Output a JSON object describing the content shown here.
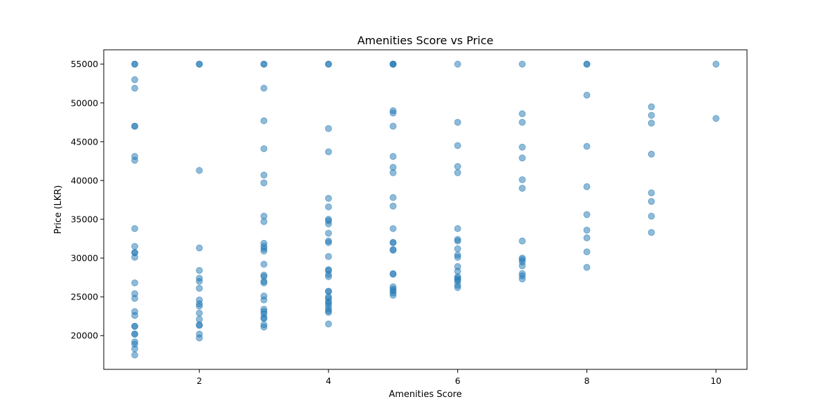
{
  "chart_data": {
    "type": "scatter",
    "title": "Amenities Score vs Price",
    "xlabel": "Amenities Score",
    "ylabel": "Price (LKR)",
    "xlim": [
      0.52,
      10.48
    ],
    "ylim": [
      15650,
      56850
    ],
    "x_ticks": [
      2,
      4,
      6,
      8,
      10
    ],
    "y_ticks": [
      20000,
      25000,
      30000,
      35000,
      40000,
      45000,
      50000,
      55000
    ],
    "grid": false,
    "legend": "none",
    "marker_color": "#1f77b4",
    "marker_alpha": 0.5,
    "series": [
      {
        "points": [
          [
            1,
            55000
          ],
          [
            1,
            55000
          ],
          [
            1,
            53000
          ],
          [
            1,
            51900
          ],
          [
            1,
            47000
          ],
          [
            1,
            47000
          ],
          [
            1,
            43100
          ],
          [
            1,
            42600
          ],
          [
            1,
            33800
          ],
          [
            1,
            31500
          ],
          [
            1,
            30700
          ],
          [
            1,
            30700
          ],
          [
            1,
            30100
          ],
          [
            1,
            26800
          ],
          [
            1,
            25400
          ],
          [
            1,
            24800
          ],
          [
            1,
            23100
          ],
          [
            1,
            22600
          ],
          [
            1,
            21200
          ],
          [
            1,
            21200
          ],
          [
            1,
            20200
          ],
          [
            1,
            20200
          ],
          [
            1,
            19200
          ],
          [
            1,
            18900
          ],
          [
            1,
            18300
          ],
          [
            1,
            17500
          ],
          [
            2,
            55000
          ],
          [
            2,
            55000
          ],
          [
            2,
            41300
          ],
          [
            2,
            31300
          ],
          [
            2,
            28400
          ],
          [
            2,
            27400
          ],
          [
            2,
            27000
          ],
          [
            2,
            26100
          ],
          [
            2,
            24600
          ],
          [
            2,
            24100
          ],
          [
            2,
            23800
          ],
          [
            2,
            22900
          ],
          [
            2,
            22100
          ],
          [
            2,
            21400
          ],
          [
            2,
            21300
          ],
          [
            2,
            20200
          ],
          [
            2,
            19700
          ],
          [
            3,
            55000
          ],
          [
            3,
            55000
          ],
          [
            3,
            51900
          ],
          [
            3,
            47700
          ],
          [
            3,
            44100
          ],
          [
            3,
            40700
          ],
          [
            3,
            39700
          ],
          [
            3,
            35400
          ],
          [
            3,
            34700
          ],
          [
            3,
            31900
          ],
          [
            3,
            31500
          ],
          [
            3,
            31200
          ],
          [
            3,
            30900
          ],
          [
            3,
            29200
          ],
          [
            3,
            27800
          ],
          [
            3,
            27600
          ],
          [
            3,
            27000
          ],
          [
            3,
            26800
          ],
          [
            3,
            25100
          ],
          [
            3,
            24600
          ],
          [
            3,
            23400
          ],
          [
            3,
            23100
          ],
          [
            3,
            22800
          ],
          [
            3,
            22300
          ],
          [
            3,
            22200
          ],
          [
            3,
            21400
          ],
          [
            3,
            21100
          ],
          [
            4,
            55000
          ],
          [
            4,
            55000
          ],
          [
            4,
            46700
          ],
          [
            4,
            43700
          ],
          [
            4,
            37700
          ],
          [
            4,
            36600
          ],
          [
            4,
            35000
          ],
          [
            4,
            34800
          ],
          [
            4,
            34400
          ],
          [
            4,
            33200
          ],
          [
            4,
            32200
          ],
          [
            4,
            32000
          ],
          [
            4,
            30200
          ],
          [
            4,
            28500
          ],
          [
            4,
            28400
          ],
          [
            4,
            27900
          ],
          [
            4,
            27600
          ],
          [
            4,
            25700
          ],
          [
            4,
            25700
          ],
          [
            4,
            25000
          ],
          [
            4,
            24800
          ],
          [
            4,
            24400
          ],
          [
            4,
            24200
          ],
          [
            4,
            23900
          ],
          [
            4,
            23500
          ],
          [
            4,
            23200
          ],
          [
            4,
            23000
          ],
          [
            4,
            21500
          ],
          [
            5,
            55000
          ],
          [
            5,
            55000
          ],
          [
            5,
            55000
          ],
          [
            5,
            49000
          ],
          [
            5,
            48700
          ],
          [
            5,
            47000
          ],
          [
            5,
            43100
          ],
          [
            5,
            41700
          ],
          [
            5,
            41000
          ],
          [
            5,
            37800
          ],
          [
            5,
            36700
          ],
          [
            5,
            33800
          ],
          [
            5,
            32000
          ],
          [
            5,
            32000
          ],
          [
            5,
            31100
          ],
          [
            5,
            31000
          ],
          [
            5,
            28000
          ],
          [
            5,
            27900
          ],
          [
            5,
            26300
          ],
          [
            5,
            26000
          ],
          [
            5,
            25800
          ],
          [
            5,
            25500
          ],
          [
            5,
            25200
          ],
          [
            6,
            55000
          ],
          [
            6,
            47500
          ],
          [
            6,
            44500
          ],
          [
            6,
            41800
          ],
          [
            6,
            41000
          ],
          [
            6,
            33800
          ],
          [
            6,
            32400
          ],
          [
            6,
            32200
          ],
          [
            6,
            31200
          ],
          [
            6,
            30400
          ],
          [
            6,
            30100
          ],
          [
            6,
            28900
          ],
          [
            6,
            28300
          ],
          [
            6,
            27600
          ],
          [
            6,
            27400
          ],
          [
            6,
            27200
          ],
          [
            6,
            27000
          ],
          [
            6,
            26500
          ],
          [
            6,
            26200
          ],
          [
            7,
            55000
          ],
          [
            7,
            48600
          ],
          [
            7,
            47500
          ],
          [
            7,
            44300
          ],
          [
            7,
            42900
          ],
          [
            7,
            40100
          ],
          [
            7,
            39000
          ],
          [
            7,
            32200
          ],
          [
            7,
            30000
          ],
          [
            7,
            29800
          ],
          [
            7,
            29500
          ],
          [
            7,
            29000
          ],
          [
            7,
            28000
          ],
          [
            7,
            27700
          ],
          [
            7,
            27300
          ],
          [
            8,
            55000
          ],
          [
            8,
            55000
          ],
          [
            8,
            51000
          ],
          [
            8,
            44400
          ],
          [
            8,
            39200
          ],
          [
            8,
            35600
          ],
          [
            8,
            33600
          ],
          [
            8,
            32600
          ],
          [
            8,
            30800
          ],
          [
            8,
            28800
          ],
          [
            9,
            49500
          ],
          [
            9,
            48400
          ],
          [
            9,
            47400
          ],
          [
            9,
            43400
          ],
          [
            9,
            38400
          ],
          [
            9,
            37300
          ],
          [
            9,
            35400
          ],
          [
            9,
            33300
          ],
          [
            10,
            55000
          ],
          [
            10,
            48000
          ]
        ]
      }
    ]
  }
}
